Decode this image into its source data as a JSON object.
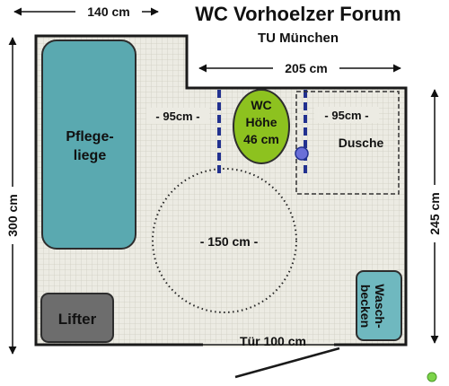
{
  "title": "WC Vorhoelzer Forum",
  "subtitle": "TU München",
  "dimensions": {
    "top_left": "140 cm",
    "top_right": "205 cm",
    "left": "300 cm",
    "right": "245 cm",
    "turning_circle": "- 150 cm -",
    "clearance_left": "- 95cm -",
    "clearance_right": "- 95cm -",
    "door": "Tür 100 cm"
  },
  "fixtures": {
    "care_bed_line1": "Pflege-",
    "care_bed_line2": "liege",
    "toilet_line1": "WC",
    "toilet_line2": "Höhe",
    "toilet_line3": "46 cm",
    "shower": "Dusche",
    "lifter": "Lifter",
    "sink_line1": "Wasch-",
    "sink_line2": "becken"
  },
  "colors": {
    "floor": "#ecebe3",
    "tile_line": "#cfcdc2",
    "wall": "#1a1a1a",
    "care_bed": "#5aa9b0",
    "toilet": "#8dc21f",
    "lifter": "#6d6d6d",
    "sink": "#6fb8bf",
    "grab_bar": "#22318f",
    "flush_button": "#6a6fd8",
    "status_dot": "#7cd44a"
  }
}
